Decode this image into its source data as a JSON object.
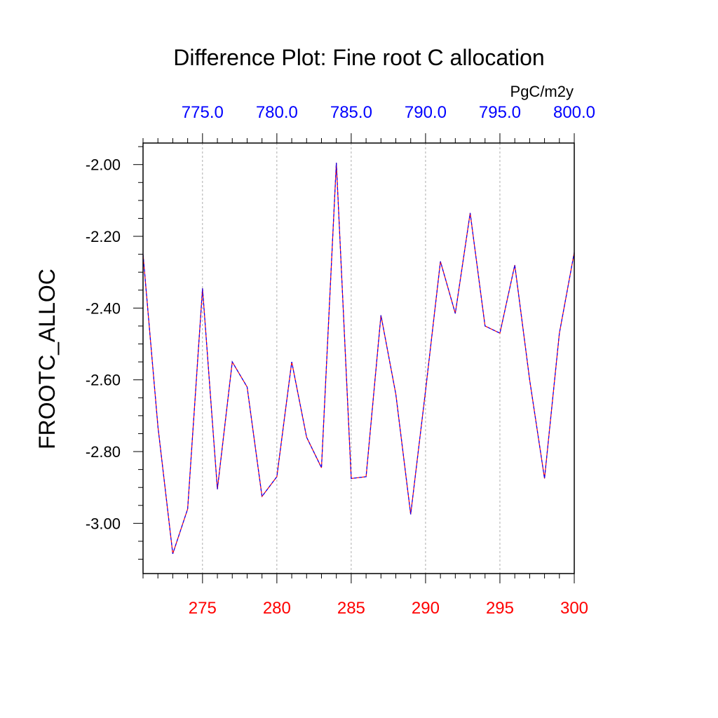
{
  "chart_data": {
    "type": "line",
    "title": "Difference Plot: Fine root C allocation",
    "units": "PgC/m2y",
    "ylabel": "FROOTC_ALLOC",
    "xlabel": "",
    "xlim": [
      271,
      300
    ],
    "ylim": [
      -3.14,
      -1.94
    ],
    "x_ticks": [
      275,
      280,
      285,
      290,
      295,
      300
    ],
    "x_tick_labels": [
      "275",
      "280",
      "285",
      "290",
      "295",
      "300"
    ],
    "x_top_ticks": [
      275,
      280,
      285,
      290,
      295,
      300
    ],
    "x_top_tick_labels": [
      "775.0",
      "780.0",
      "785.0",
      "790.0",
      "795.0",
      "800.0"
    ],
    "y_ticks": [
      -3.0,
      -2.8,
      -2.6,
      -2.4,
      -2.2,
      -2.0
    ],
    "y_tick_labels": [
      "-3.00",
      "-2.80",
      "-2.60",
      "-2.40",
      "-2.20",
      "-2.00"
    ],
    "grid": "vertical dashed",
    "x": [
      271,
      272,
      273,
      274,
      275,
      276,
      277,
      278,
      279,
      280,
      281,
      282,
      283,
      284,
      285,
      286,
      287,
      288,
      289,
      290,
      291,
      292,
      293,
      294,
      295,
      296,
      297,
      298,
      299,
      300
    ],
    "series": [
      {
        "color": "#ff0000",
        "style": "solid",
        "values": [
          -2.25,
          -2.73,
          -3.085,
          -2.96,
          -2.345,
          -2.905,
          -2.55,
          -2.62,
          -2.925,
          -2.87,
          -2.55,
          -2.76,
          -2.845,
          -1.995,
          -2.875,
          -2.87,
          -2.42,
          -2.64,
          -2.975,
          -2.63,
          -2.27,
          -2.415,
          -2.135,
          -2.45,
          -2.47,
          -2.28,
          -2.6,
          -2.875,
          -2.47,
          -2.245
        ]
      },
      {
        "color": "#0000ff",
        "style": "dashed",
        "values": [
          -2.25,
          -2.73,
          -3.085,
          -2.96,
          -2.345,
          -2.905,
          -2.55,
          -2.62,
          -2.925,
          -2.87,
          -2.55,
          -2.76,
          -2.845,
          -1.995,
          -2.875,
          -2.87,
          -2.42,
          -2.64,
          -2.975,
          -2.63,
          -2.27,
          -2.415,
          -2.135,
          -2.45,
          -2.47,
          -2.28,
          -2.6,
          -2.875,
          -2.47,
          -2.245
        ]
      }
    ],
    "colors": {
      "bottom_axis": "#ff0000",
      "top_axis": "#0000ff",
      "left_axis": "#000000"
    }
  }
}
